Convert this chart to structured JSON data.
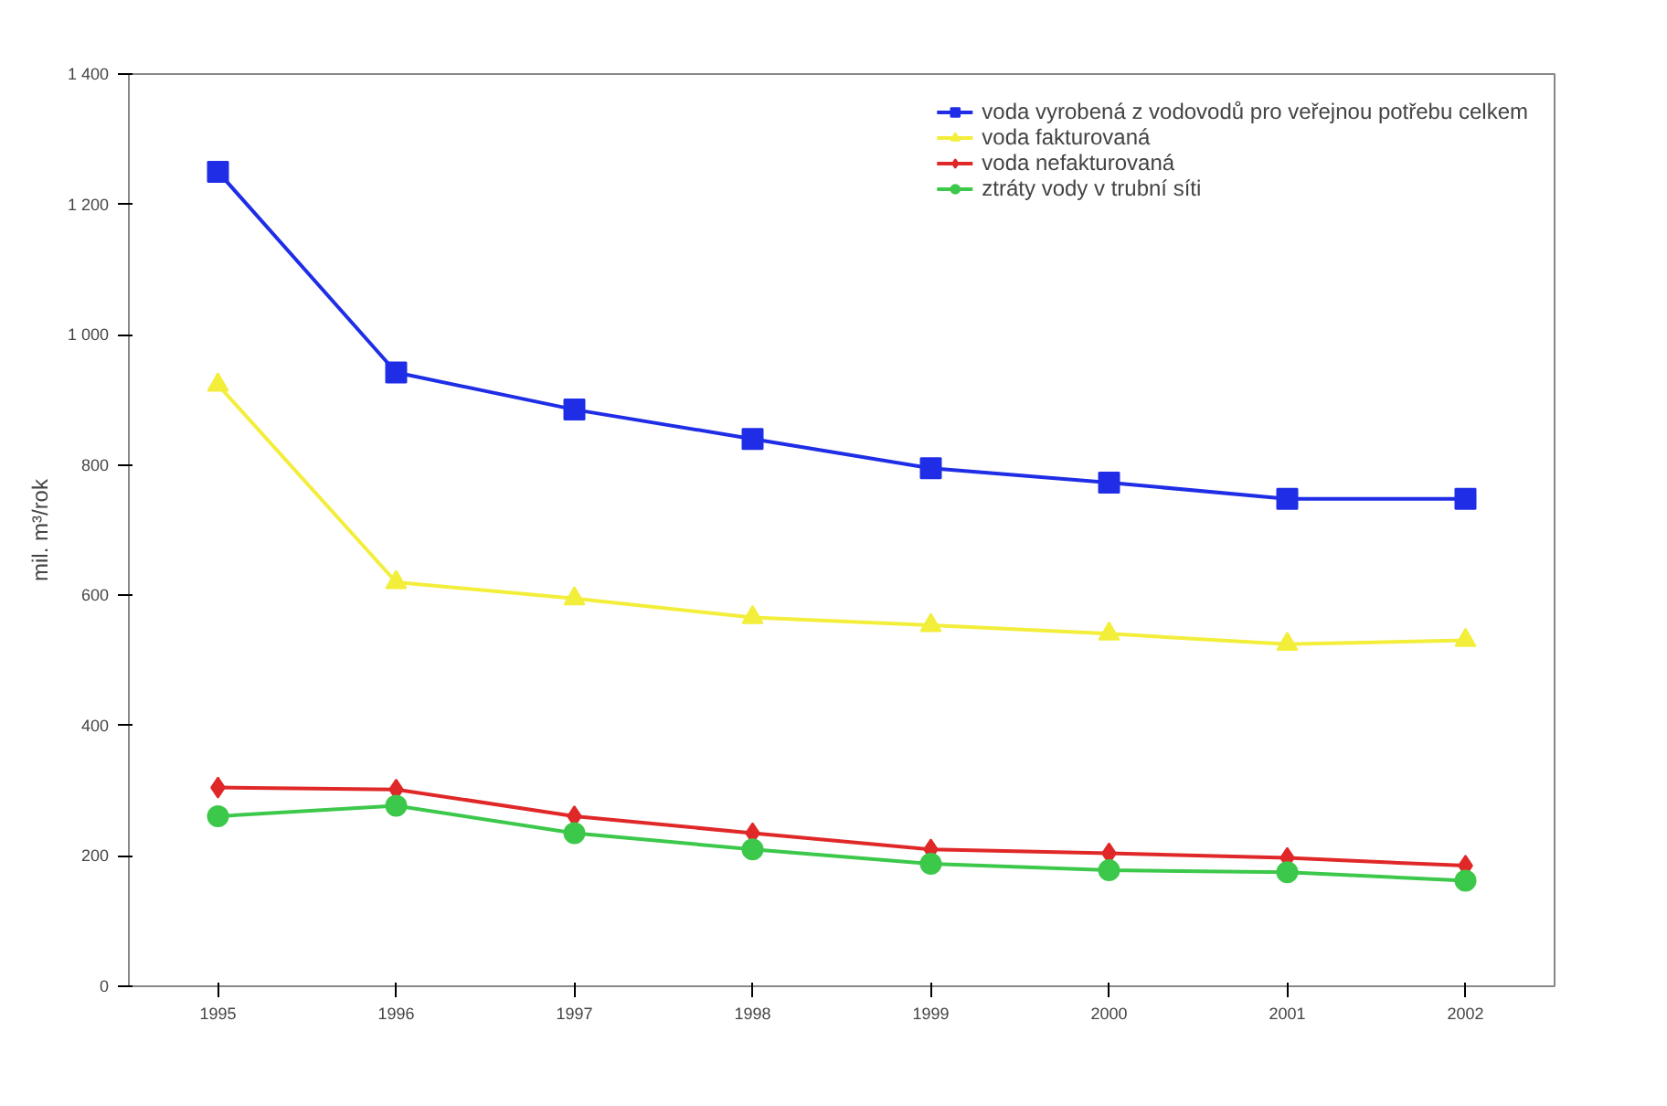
{
  "chart_data": {
    "type": "line",
    "ylabel": "mil. m³/rok",
    "categories": [
      "1995",
      "1996",
      "1997",
      "1998",
      "1999",
      "2000",
      "2001",
      "2002"
    ],
    "series": [
      {
        "name": "voda vyrobená z vodovodů pro veřejnou potřebu celkem",
        "color": "#1f2ee6",
        "marker": "square",
        "values": [
          1250,
          942,
          885,
          840,
          795,
          773,
          748,
          748
        ]
      },
      {
        "name": "voda fakturovaná",
        "color": "#f2ee3a",
        "marker": "triangle",
        "values": [
          923,
          620,
          595,
          566,
          554,
          541,
          525,
          531
        ]
      },
      {
        "name": "voda nefakturovaná",
        "color": "#e02828",
        "marker": "diamond",
        "values": [
          305,
          302,
          261,
          235,
          210,
          204,
          197,
          185
        ]
      },
      {
        "name": "ztráty vody v trubní síti",
        "color": "#3cc84a",
        "marker": "circle",
        "values": [
          261,
          277,
          235,
          210,
          188,
          178,
          175,
          162
        ]
      }
    ],
    "ylim": [
      0,
      1400
    ],
    "yticks": [
      0,
      200,
      400,
      600,
      800,
      {
        "value": 1000,
        "label": "1 000"
      },
      {
        "value": 1200,
        "label": "1 200"
      },
      {
        "value": 1400,
        "label": "1 400"
      }
    ],
    "grid": false,
    "legend": "top right"
  }
}
